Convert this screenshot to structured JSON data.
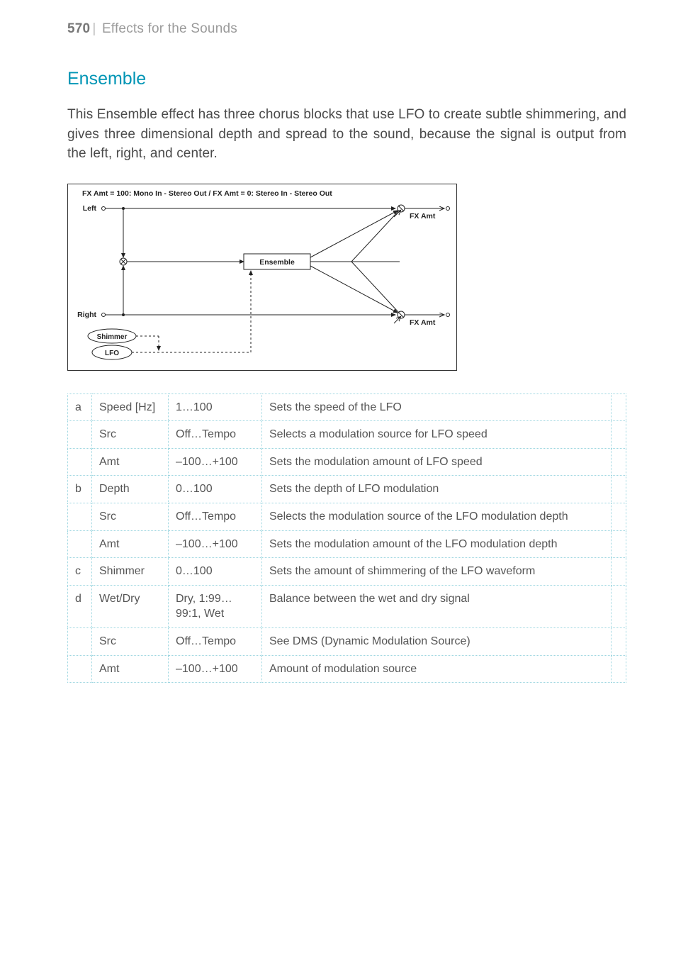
{
  "header": {
    "page_number": "570",
    "chapter_title": "Effects for the Sounds"
  },
  "section": {
    "title": "Ensemble",
    "intro": "This Ensemble effect has three chorus blocks that use LFO to create subtle shimmering, and gives three dimensional depth and spread to the sound, because the signal is output from the left, right, and center."
  },
  "diagram": {
    "caption": "FX Amt = 100: Mono In - Stereo Out  /  FX Amt = 0: Stereo In - Stereo Out",
    "left_label": "Left",
    "right_label": "Right",
    "block_label": "Ensemble",
    "fx_amt_label": "FX Amt",
    "shimmer_label": "Shimmer",
    "lfo_label": "LFO",
    "colors": {
      "border": "#333333",
      "text": "#222222",
      "dash": "#333333"
    },
    "font_size_small": 10
  },
  "table": {
    "rows": [
      {
        "letter": "a",
        "name": "Speed [Hz]",
        "range": "1…100",
        "desc": "Sets the speed of the LFO"
      },
      {
        "letter": "",
        "name": "Src",
        "range": "Off…Tempo",
        "desc": "Selects a modulation source for LFO speed"
      },
      {
        "letter": "",
        "name": "Amt",
        "range": "–100…+100",
        "desc": "Sets the modulation amount of LFO speed"
      },
      {
        "letter": "b",
        "name": "Depth",
        "range": "0…100",
        "desc": "Sets the depth of LFO modulation"
      },
      {
        "letter": "",
        "name": "Src",
        "range": "Off…Tempo",
        "desc": "Selects the modulation source of the LFO modulation depth"
      },
      {
        "letter": "",
        "name": "Amt",
        "range": "–100…+100",
        "desc": "Sets the modulation amount of the LFO modulation depth"
      },
      {
        "letter": "c",
        "name": "Shimmer",
        "range": "0…100",
        "desc": "Sets the amount of shimmering of the LFO waveform"
      },
      {
        "letter": "d",
        "name": "Wet/Dry",
        "range": "Dry, 1:99…99:1, Wet",
        "desc": "Balance between the wet and dry signal"
      },
      {
        "letter": "",
        "name": "Src",
        "range": "Off…Tempo",
        "desc": "See DMS (Dynamic Modulation Source)"
      },
      {
        "letter": "",
        "name": "Amt",
        "range": "–100…+100",
        "desc": "Amount of modulation source"
      }
    ]
  }
}
